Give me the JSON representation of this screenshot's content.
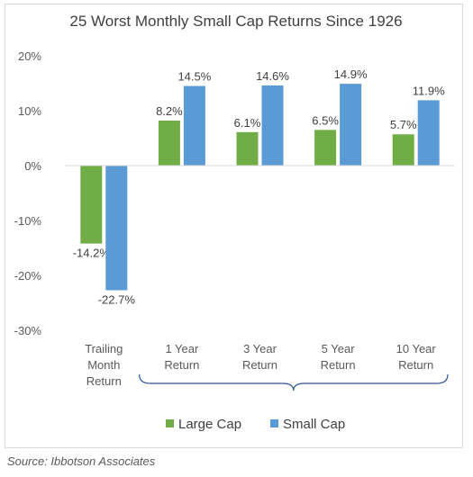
{
  "chart_data": {
    "type": "bar",
    "title": "25 Worst Monthly Small Cap Returns Since 1926",
    "categories": [
      [
        "Trailing",
        "Month",
        "Return"
      ],
      [
        "1 Year",
        "Return"
      ],
      [
        "3 Year",
        "Return"
      ],
      [
        "5 Year",
        "Return"
      ],
      [
        "10 Year",
        "Return"
      ]
    ],
    "series": [
      {
        "name": "Large Cap",
        "values": [
          -14.2,
          8.2,
          6.1,
          6.5,
          5.7
        ],
        "labels": [
          "-14.2%",
          "8.2%",
          "6.1%",
          "6.5%",
          "5.7%"
        ],
        "color": "#70ad47"
      },
      {
        "name": "Small Cap",
        "values": [
          -22.7,
          14.5,
          14.6,
          14.9,
          11.9
        ],
        "labels": [
          "-22.7%",
          "14.5%",
          "14.6%",
          "14.9%",
          "11.9%"
        ],
        "color": "#5b9bd5"
      }
    ],
    "ylim": [
      -30,
      20
    ],
    "yticks": [
      20,
      10,
      0,
      -10,
      -20,
      -30
    ],
    "ytick_labels": [
      "20%",
      "10%",
      "0%",
      "-10%",
      "-20%",
      "-30%"
    ],
    "legend_position": "bottom",
    "grid": false
  },
  "source": "Source: Ibbotson Associates"
}
